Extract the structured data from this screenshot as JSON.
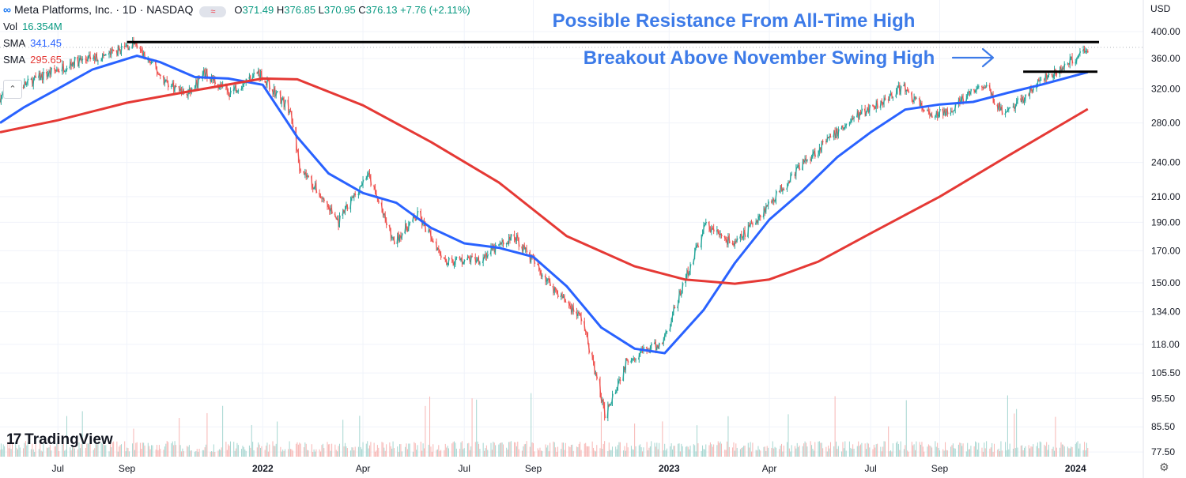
{
  "header": {
    "logo_glyph": "∞",
    "symbol_line": "Meta Platforms, Inc. · 1D · NASDAQ",
    "ohlc": {
      "o_label": "O",
      "o_value": "371.49",
      "h_label": "H",
      "h_value": "376.85",
      "l_label": "L",
      "l_value": "370.95",
      "c_label": "C",
      "c_value": "376.13",
      "change": "+7.76 (+2.11%)"
    },
    "wave_glyph": "≈"
  },
  "legend": {
    "vol_label": "Vol",
    "vol_value": "16.354M",
    "sma1_label": "SMA",
    "sma1_value": "341.45",
    "sma2_label": "SMA",
    "sma2_value": "295.65",
    "collapse_glyph": "⌃"
  },
  "currency": "USD",
  "branding": {
    "mark": "17",
    "name": "TradingView"
  },
  "settings_glyph": "⚙",
  "colors": {
    "sma_fast": "#2962ff",
    "sma_slow": "#e53935",
    "candle_up": "#26a69a",
    "candle_down": "#ef5350",
    "annotation_text": "#3d7be8",
    "resistance_line": "#000000"
  },
  "chart_data": {
    "type": "line",
    "y_scale": "log",
    "ylim": [
      75,
      420
    ],
    "y_ticks": [
      400,
      360,
      320,
      280,
      240,
      210,
      190,
      170,
      150,
      134,
      118,
      105.5,
      95.5,
      85.5,
      77.5
    ],
    "y_tick_labels": [
      "400.00",
      "360.00",
      "320.00",
      "280.00",
      "240.00",
      "210.00",
      "190.00",
      "170.00",
      "150.00",
      "134.00",
      "118.00",
      "105.50",
      "95.50",
      "85.50",
      "77.50"
    ],
    "x_range": [
      "2021-05-10",
      "2024-01-15"
    ],
    "x_ticks": [
      {
        "date": "2021-07-01",
        "label": "Jul"
      },
      {
        "date": "2021-09-01",
        "label": "Sep"
      },
      {
        "date": "2022-01-01",
        "label": "2022"
      },
      {
        "date": "2022-04-01",
        "label": "Apr"
      },
      {
        "date": "2022-07-01",
        "label": "Jul"
      },
      {
        "date": "2022-09-01",
        "label": "Sep"
      },
      {
        "date": "2023-01-01",
        "label": "2023"
      },
      {
        "date": "2023-04-01",
        "label": "Apr"
      },
      {
        "date": "2023-07-01",
        "label": "Jul"
      },
      {
        "date": "2023-09-01",
        "label": "Sep"
      },
      {
        "date": "2024-01-01",
        "label": "2024"
      }
    ],
    "series": [
      {
        "name": "SMA",
        "color": "#2962ff",
        "points": [
          [
            "2021-05-10",
            280
          ],
          [
            "2021-06-01",
            298
          ],
          [
            "2021-07-01",
            320
          ],
          [
            "2021-08-01",
            345
          ],
          [
            "2021-09-10",
            364
          ],
          [
            "2021-10-01",
            355
          ],
          [
            "2021-11-01",
            335
          ],
          [
            "2021-12-01",
            333
          ],
          [
            "2022-01-01",
            325
          ],
          [
            "2022-02-01",
            265
          ],
          [
            "2022-03-01",
            230
          ],
          [
            "2022-04-01",
            213
          ],
          [
            "2022-05-01",
            205
          ],
          [
            "2022-06-01",
            186
          ],
          [
            "2022-07-01",
            175
          ],
          [
            "2022-08-01",
            172
          ],
          [
            "2022-09-01",
            166
          ],
          [
            "2022-10-01",
            148
          ],
          [
            "2022-11-01",
            126
          ],
          [
            "2022-12-01",
            116
          ],
          [
            "2022-12-28",
            114
          ],
          [
            "2023-02-01",
            135
          ],
          [
            "2023-03-01",
            162
          ],
          [
            "2023-04-01",
            192
          ],
          [
            "2023-05-01",
            215
          ],
          [
            "2023-06-01",
            245
          ],
          [
            "2023-07-01",
            270
          ],
          [
            "2023-08-01",
            295
          ],
          [
            "2023-09-01",
            301
          ],
          [
            "2023-10-01",
            304
          ],
          [
            "2023-11-01",
            315
          ],
          [
            "2023-12-01",
            325
          ],
          [
            "2024-01-12",
            341.45
          ]
        ]
      },
      {
        "name": "SMA",
        "color": "#e53935",
        "points": [
          [
            "2021-05-10",
            270
          ],
          [
            "2021-07-01",
            283
          ],
          [
            "2021-09-01",
            303
          ],
          [
            "2021-11-01",
            318
          ],
          [
            "2022-01-01",
            333
          ],
          [
            "2022-02-01",
            332
          ],
          [
            "2022-04-01",
            300
          ],
          [
            "2022-06-01",
            260
          ],
          [
            "2022-08-01",
            222
          ],
          [
            "2022-10-01",
            180
          ],
          [
            "2022-12-01",
            160
          ],
          [
            "2023-01-15",
            152
          ],
          [
            "2023-03-01",
            149.5
          ],
          [
            "2023-04-01",
            152
          ],
          [
            "2023-05-15",
            163
          ],
          [
            "2023-07-01",
            182
          ],
          [
            "2023-09-01",
            210
          ],
          [
            "2023-11-01",
            246
          ],
          [
            "2024-01-12",
            295.65
          ]
        ]
      }
    ],
    "price_path": [
      [
        "2021-05-10",
        310
      ],
      [
        "2021-06-15",
        335
      ],
      [
        "2021-07-15",
        355
      ],
      [
        "2021-08-15",
        365
      ],
      [
        "2021-09-07",
        382
      ],
      [
        "2021-10-05",
        330
      ],
      [
        "2021-10-25",
        312
      ],
      [
        "2021-11-10",
        340
      ],
      [
        "2021-12-01",
        315
      ],
      [
        "2021-12-28",
        342
      ],
      [
        "2022-01-25",
        295
      ],
      [
        "2022-02-03",
        237
      ],
      [
        "2022-03-10",
        190
      ],
      [
        "2022-04-05",
        230
      ],
      [
        "2022-04-28",
        176
      ],
      [
        "2022-05-20",
        195
      ],
      [
        "2022-06-15",
        163
      ],
      [
        "2022-07-15",
        165
      ],
      [
        "2022-08-15",
        180
      ],
      [
        "2022-09-15",
        150
      ],
      [
        "2022-10-15",
        130
      ],
      [
        "2022-11-04",
        90
      ],
      [
        "2022-11-25",
        112
      ],
      [
        "2022-12-25",
        118
      ],
      [
        "2023-02-02",
        188
      ],
      [
        "2023-03-01",
        174
      ],
      [
        "2023-04-10",
        215
      ],
      [
        "2023-05-01",
        240
      ],
      [
        "2023-06-15",
        285
      ],
      [
        "2023-07-30",
        322
      ],
      [
        "2023-08-25",
        285
      ],
      [
        "2023-09-15",
        300
      ],
      [
        "2023-10-10",
        325
      ],
      [
        "2023-10-30",
        288
      ],
      [
        "2023-11-30",
        330
      ],
      [
        "2023-12-15",
        340
      ],
      [
        "2024-01-12",
        376.13
      ]
    ],
    "levels": [
      {
        "name": "all-time-high",
        "value": 384,
        "from": "2021-09-01",
        "to": "2024-01-15"
      },
      {
        "name": "november-swing-high",
        "value": 342,
        "from": "2023-11-15",
        "to": "2024-01-15"
      }
    ],
    "annotations": [
      {
        "text": "Possible Resistance From All-Time High",
        "color": "#3d7be8"
      },
      {
        "text": "Breakout Above November Swing High",
        "color": "#3d7be8"
      }
    ]
  }
}
